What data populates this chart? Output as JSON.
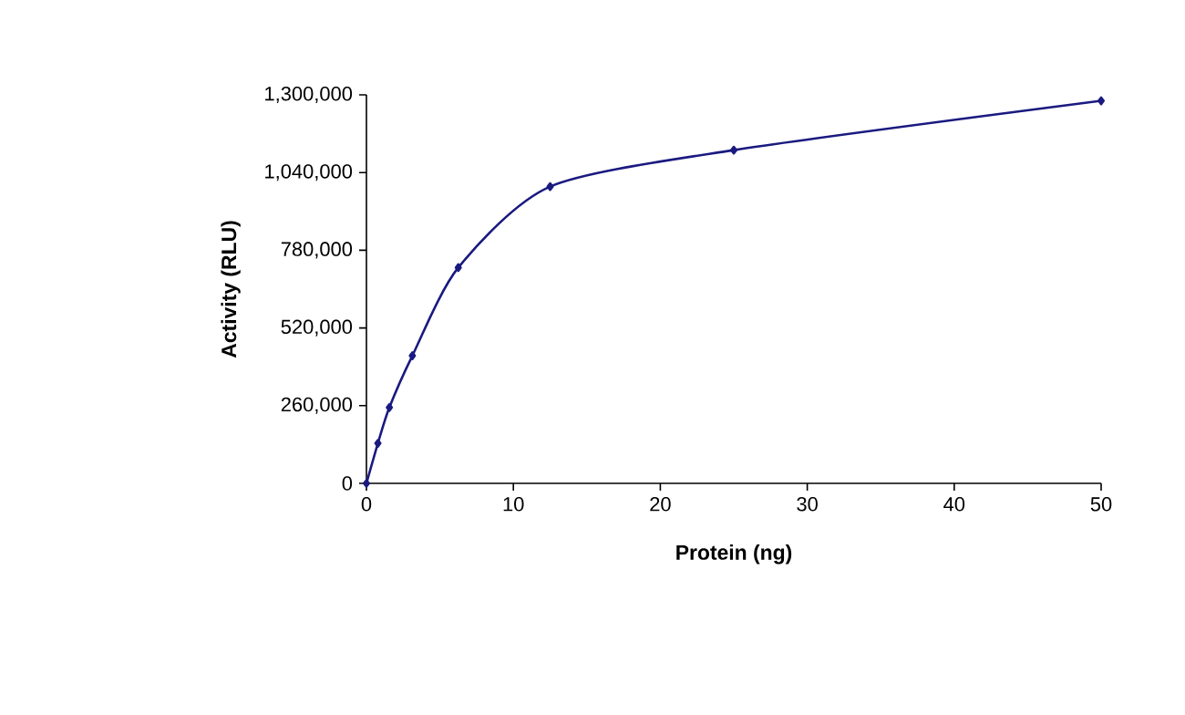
{
  "chart_data": {
    "type": "line",
    "xlabel": "Protein (ng)",
    "ylabel": "Activity (RLU)",
    "x": [
      0,
      0.78,
      1.56,
      3.125,
      6.25,
      12.5,
      25,
      50
    ],
    "series": [
      {
        "color": "#1a1a80",
        "values": [
          0,
          134000,
          254000,
          427000,
          722000,
          993000,
          1115000,
          1280000
        ]
      }
    ],
    "xlim": [
      0,
      50
    ],
    "xticks": [
      0,
      10,
      20,
      30,
      40,
      50
    ],
    "ylim": [
      0,
      1300000
    ],
    "yticks": [
      {
        "value": 0,
        "label": "0"
      },
      {
        "value": 260000,
        "label": "260,000"
      },
      {
        "value": 520000,
        "label": "520,000"
      },
      {
        "value": 780000,
        "label": "780,000"
      },
      {
        "value": 1040000,
        "label": "1,040,000"
      },
      {
        "value": 1300000,
        "label": "1,300,000"
      }
    ],
    "grid": false,
    "marker": "diamond",
    "line_style": "solid"
  }
}
